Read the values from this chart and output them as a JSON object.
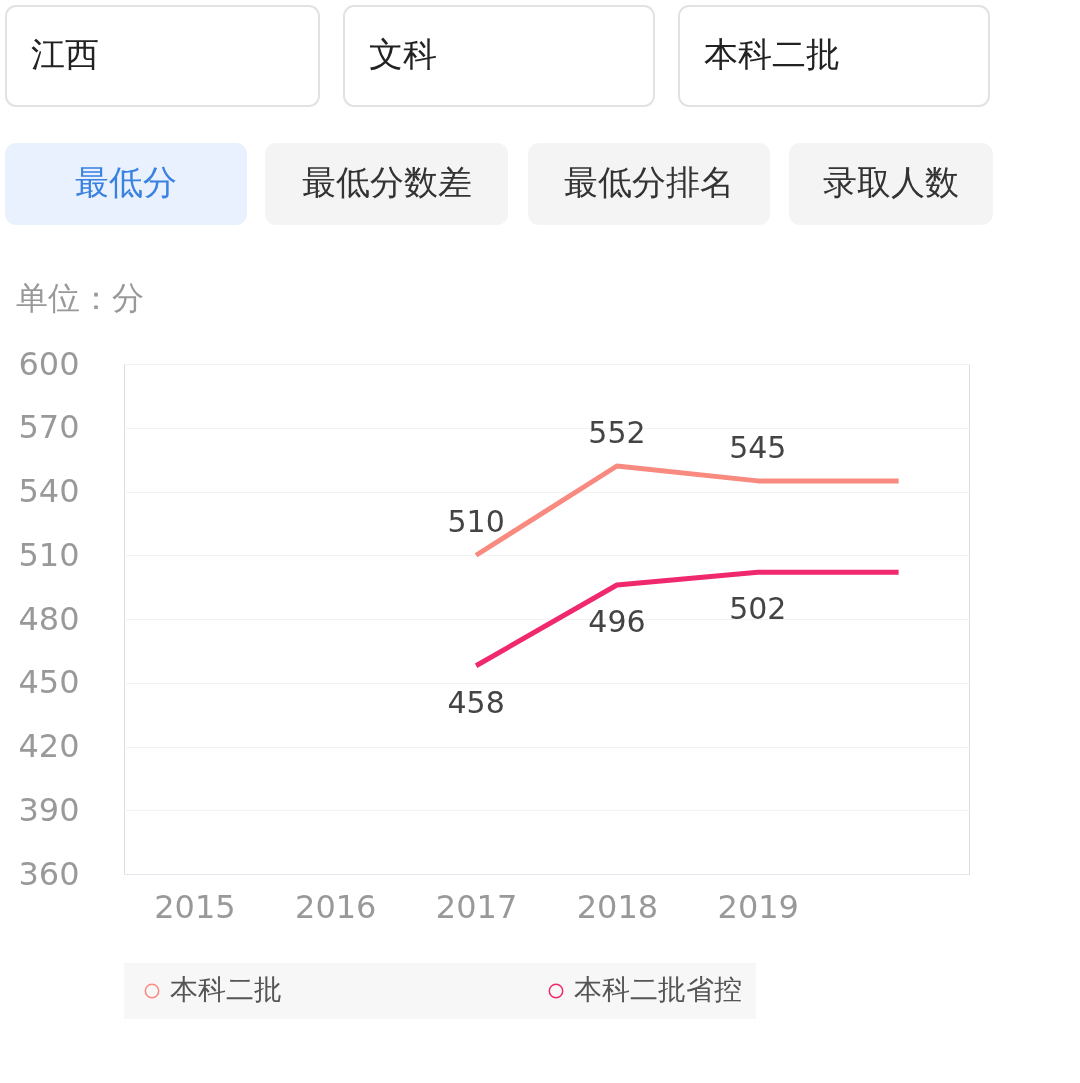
{
  "chart_data": {
    "type": "line",
    "ylabel": "单位：分",
    "annotations": [
      "江西",
      "文科",
      "本科二批",
      "最低分",
      "最低分数差",
      "最低分排名",
      "录取人数"
    ],
    "categories": [
      "2015",
      "2016",
      "2017",
      "2018",
      "2019",
      null
    ],
    "series": [
      {
        "name": "本科二批",
        "color": "#f98a80",
        "values": [
          null,
          null,
          510,
          552,
          545,
          545
        ],
        "value_labels": [
          null,
          null,
          "510",
          "552",
          "545",
          null
        ]
      },
      {
        "name": "本科二批省控",
        "color": "#f0286e",
        "values": [
          null,
          null,
          458,
          496,
          502,
          502
        ],
        "value_labels": [
          null,
          null,
          "458",
          "496",
          "502",
          null
        ]
      }
    ],
    "ylim": [
      360,
      600
    ],
    "yticks": [
      360,
      390,
      420,
      450,
      480,
      510,
      540,
      570,
      600
    ],
    "grid": "y",
    "legend": "bottom",
    "marker": "none",
    "line_style": "solid"
  }
}
